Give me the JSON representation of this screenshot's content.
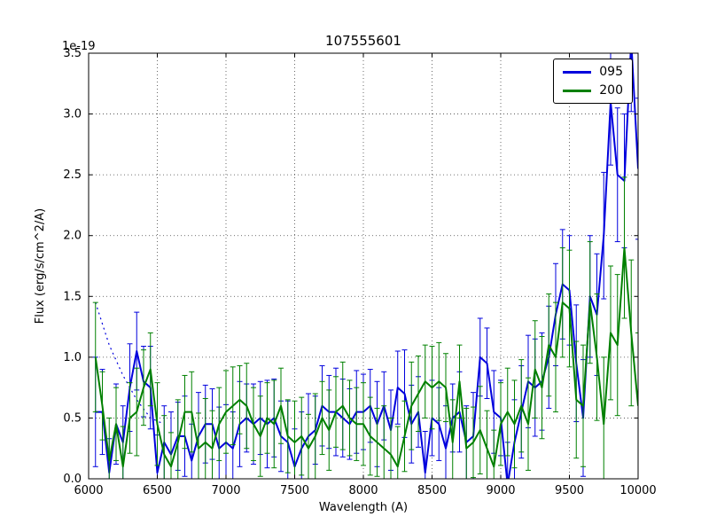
{
  "chart_data": {
    "type": "line",
    "title": "107555601",
    "xlabel": "Wavelength (A)",
    "ylabel": "Flux (erg/s/cm^2/A)",
    "y_offset_text": "1e-19",
    "xlim": [
      6000,
      10000
    ],
    "ylim": [
      0.0,
      3.5
    ],
    "xticks": [
      6000,
      6500,
      7000,
      7500,
      8000,
      8500,
      9000,
      9500,
      10000
    ],
    "xtick_labels": [
      "6000",
      "6500",
      "7000",
      "7500",
      "8000",
      "8500",
      "9000",
      "9500",
      "10000"
    ],
    "yticks": [
      0.0,
      0.5,
      1.0,
      1.5,
      2.0,
      2.5,
      3.0,
      3.5
    ],
    "ytick_labels": [
      "0.0",
      "0.5",
      "1.0",
      "1.5",
      "2.0",
      "2.5",
      "3.0",
      "3.5"
    ],
    "grid": true,
    "grid_color": "#444444",
    "legend_position": "upper right",
    "series": [
      {
        "label": "095-masked-dotted",
        "color": "#0000dd",
        "style": "dotted",
        "in_legend": false,
        "x": [
          6050,
          6150,
          6250,
          6350,
          6450,
          6550
        ],
        "y": [
          1.45,
          1.1,
          0.85,
          0.65,
          0.5,
          0.45
        ]
      },
      {
        "label": "095",
        "color": "#0000dd",
        "style": "solid",
        "in_legend": true,
        "x": [
          6050,
          6100,
          6150,
          6200,
          6250,
          6300,
          6350,
          6400,
          6450,
          6500,
          6550,
          6600,
          6650,
          6700,
          6750,
          6800,
          6850,
          6900,
          6950,
          7000,
          7050,
          7100,
          7150,
          7200,
          7250,
          7300,
          7350,
          7400,
          7450,
          7500,
          7550,
          7600,
          7650,
          7700,
          7750,
          7800,
          7850,
          7900,
          7950,
          8000,
          8050,
          8100,
          8150,
          8200,
          8250,
          8300,
          8350,
          8400,
          8450,
          8500,
          8550,
          8600,
          8650,
          8700,
          8750,
          8800,
          8850,
          8900,
          8950,
          9000,
          9050,
          9100,
          9150,
          9200,
          9250,
          9300,
          9350,
          9400,
          9450,
          9500,
          9550,
          9600,
          9650,
          9700,
          9750,
          9800,
          9850,
          9900,
          9950,
          10000
        ],
        "y": [
          0.55,
          0.55,
          0.05,
          0.45,
          0.3,
          0.75,
          1.05,
          0.8,
          0.75,
          0.05,
          0.3,
          0.2,
          0.35,
          0.35,
          0.15,
          0.35,
          0.45,
          0.45,
          0.25,
          0.3,
          0.25,
          0.45,
          0.5,
          0.45,
          0.5,
          0.45,
          0.5,
          0.35,
          0.3,
          0.1,
          0.25,
          0.35,
          0.4,
          0.6,
          0.55,
          0.55,
          0.5,
          0.45,
          0.55,
          0.55,
          0.6,
          0.45,
          0.6,
          0.4,
          0.75,
          0.7,
          0.45,
          0.55,
          0.05,
          0.5,
          0.45,
          0.25,
          0.5,
          0.55,
          0.3,
          0.35,
          1.0,
          0.95,
          0.55,
          0.5,
          -0.05,
          0.3,
          0.55,
          0.8,
          0.75,
          0.8,
          1.0,
          1.35,
          1.6,
          1.55,
          0.95,
          0.5,
          1.5,
          1.35,
          2.0,
          3.1,
          2.5,
          2.45,
          3.6,
          2.55
        ],
        "yerr": [
          0.45,
          0.35,
          0.28,
          0.33,
          0.3,
          0.36,
          0.32,
          0.29,
          0.34,
          0.31,
          0.3,
          0.35,
          0.28,
          0.33,
          0.3,
          0.36,
          0.32,
          0.29,
          0.34,
          0.31,
          0.3,
          0.35,
          0.28,
          0.33,
          0.3,
          0.36,
          0.32,
          0.29,
          0.34,
          0.31,
          0.3,
          0.35,
          0.28,
          0.33,
          0.3,
          0.36,
          0.32,
          0.29,
          0.34,
          0.31,
          0.3,
          0.35,
          0.28,
          0.33,
          0.3,
          0.36,
          0.32,
          0.29,
          0.34,
          0.31,
          0.3,
          0.35,
          0.28,
          0.33,
          0.3,
          0.36,
          0.32,
          0.29,
          0.34,
          0.31,
          0.35,
          0.35,
          0.38,
          0.38,
          0.4,
          0.4,
          0.42,
          0.42,
          0.45,
          0.45,
          0.48,
          0.48,
          0.5,
          0.5,
          0.52,
          0.52,
          0.55,
          0.55,
          0.58,
          0.58
        ]
      },
      {
        "label": "200",
        "color": "#008000",
        "style": "solid",
        "in_legend": true,
        "x": [
          6050,
          6100,
          6150,
          6200,
          6250,
          6300,
          6350,
          6400,
          6450,
          6500,
          6550,
          6600,
          6650,
          6700,
          6750,
          6800,
          6850,
          6900,
          6950,
          7000,
          7050,
          7100,
          7150,
          7200,
          7250,
          7300,
          7350,
          7400,
          7450,
          7500,
          7550,
          7600,
          7650,
          7700,
          7750,
          7800,
          7850,
          7900,
          7950,
          8000,
          8050,
          8100,
          8150,
          8200,
          8250,
          8300,
          8350,
          8400,
          8450,
          8500,
          8550,
          8600,
          8650,
          8700,
          8750,
          8800,
          8850,
          8900,
          8950,
          9000,
          9050,
          9100,
          9150,
          9200,
          9250,
          9300,
          9350,
          9400,
          9450,
          9500,
          9550,
          9600,
          9650,
          9700,
          9750,
          9800,
          9850,
          9900,
          9950,
          10000
        ],
        "y": [
          1.0,
          0.6,
          0.15,
          0.45,
          0.1,
          0.5,
          0.55,
          0.75,
          0.9,
          0.45,
          0.2,
          0.1,
          0.3,
          0.55,
          0.55,
          0.25,
          0.3,
          0.25,
          0.45,
          0.55,
          0.6,
          0.65,
          0.6,
          0.45,
          0.35,
          0.5,
          0.45,
          0.6,
          0.35,
          0.3,
          0.35,
          0.25,
          0.35,
          0.5,
          0.4,
          0.55,
          0.6,
          0.5,
          0.45,
          0.45,
          0.35,
          0.3,
          0.25,
          0.2,
          0.1,
          0.35,
          0.6,
          0.7,
          0.8,
          0.75,
          0.8,
          0.75,
          0.3,
          0.8,
          0.25,
          0.3,
          0.4,
          0.25,
          0.1,
          0.45,
          0.55,
          0.45,
          0.6,
          0.45,
          0.9,
          0.75,
          1.1,
          1.0,
          1.45,
          1.4,
          0.65,
          0.6,
          1.45,
          1.0,
          0.45,
          1.2,
          1.1,
          1.9,
          1.2,
          0.6
        ],
        "yerr": [
          0.45,
          0.28,
          0.35,
          0.3,
          0.33,
          0.29,
          0.36,
          0.31,
          0.3,
          0.34,
          0.32,
          0.28,
          0.35,
          0.3,
          0.33,
          0.29,
          0.36,
          0.31,
          0.3,
          0.34,
          0.32,
          0.28,
          0.35,
          0.3,
          0.33,
          0.29,
          0.36,
          0.31,
          0.3,
          0.34,
          0.32,
          0.28,
          0.35,
          0.3,
          0.33,
          0.29,
          0.36,
          0.31,
          0.3,
          0.34,
          0.32,
          0.28,
          0.35,
          0.3,
          0.33,
          0.29,
          0.36,
          0.31,
          0.3,
          0.34,
          0.32,
          0.28,
          0.35,
          0.3,
          0.33,
          0.29,
          0.36,
          0.31,
          0.3,
          0.34,
          0.36,
          0.36,
          0.38,
          0.38,
          0.4,
          0.42,
          0.42,
          0.45,
          0.45,
          0.48,
          0.48,
          0.5,
          0.5,
          0.52,
          0.55,
          0.55,
          0.58,
          0.58,
          0.6,
          0.6
        ]
      }
    ]
  }
}
